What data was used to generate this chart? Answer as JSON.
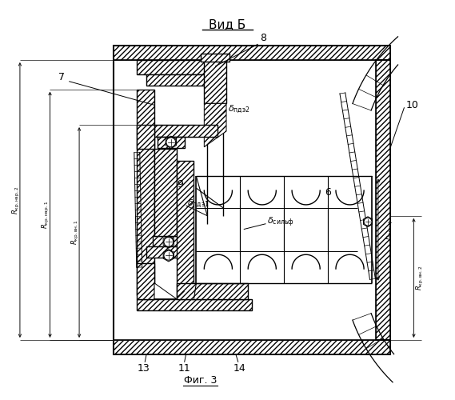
{
  "bg_color": "#ffffff",
  "line_color": "#000000",
  "title": "Вид Б",
  "caption": "Фиг. 3",
  "fig_w": 5.69,
  "fig_h": 5.0,
  "dpi": 100
}
